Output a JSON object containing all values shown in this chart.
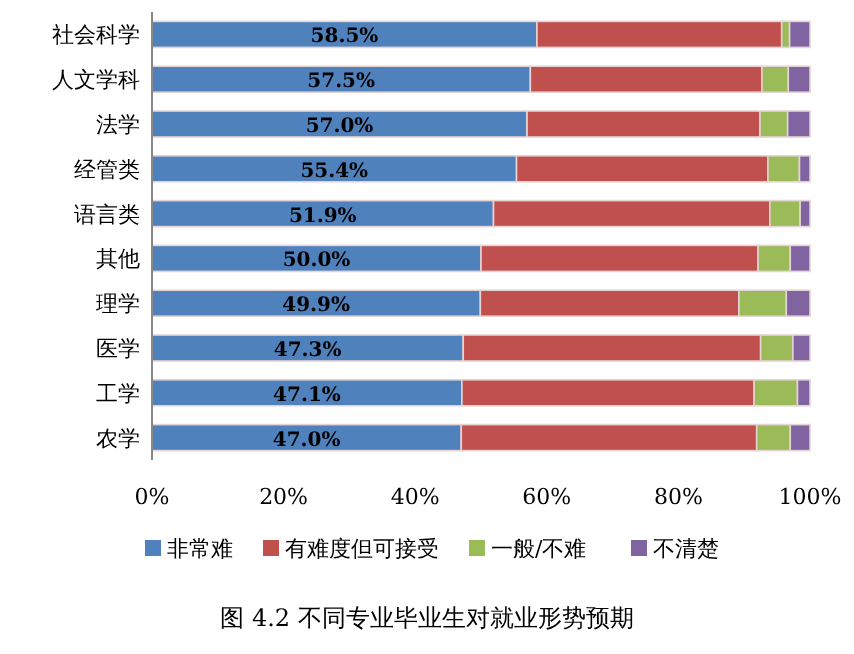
{
  "chart_data": {
    "type": "bar",
    "orientation": "horizontal",
    "stacked": true,
    "categories": [
      "社会科学",
      "人文学科",
      "法学",
      "经管类",
      "语言类",
      "其他",
      "理学",
      "医学",
      "工学",
      "农学"
    ],
    "series": [
      {
        "name": "非常难",
        "color": "#4f81bd",
        "values": [
          58.5,
          57.5,
          57.0,
          55.4,
          51.9,
          50.0,
          49.9,
          47.3,
          47.1,
          47.0
        ],
        "value_labels": [
          "58.5%",
          "57.5%",
          "57.0%",
          "55.4%",
          "51.9%",
          "50.0%",
          "49.9%",
          "47.3%",
          "47.1%",
          "47.0%"
        ]
      },
      {
        "name": "有难度但可接受",
        "color": "#c0504d",
        "values": [
          37.2,
          35.2,
          35.4,
          38.2,
          42.0,
          42.1,
          39.3,
          45.2,
          44.4,
          44.9
        ]
      },
      {
        "name": "一般/不难",
        "color": "#9bbb59",
        "values": [
          1.2,
          4.0,
          4.2,
          4.8,
          4.6,
          4.9,
          7.2,
          4.9,
          6.6,
          5.1
        ]
      },
      {
        "name": "不清楚",
        "color": "#8064a2",
        "values": [
          3.1,
          3.3,
          3.4,
          1.6,
          1.5,
          3.0,
          3.6,
          2.6,
          1.9,
          3.0
        ]
      }
    ],
    "xlim": [
      0,
      100
    ],
    "xticks": [
      {
        "value": 0,
        "label": "0%"
      },
      {
        "value": 20,
        "label": "20%"
      },
      {
        "value": 40,
        "label": "40%"
      },
      {
        "value": 60,
        "label": "60%"
      },
      {
        "value": 80,
        "label": "80%"
      },
      {
        "value": 100,
        "label": "100%"
      }
    ],
    "legend": "bottom",
    "grid": false,
    "annotations": [
      "图 4.2  不同专业毕业生对就业形势预期"
    ]
  }
}
